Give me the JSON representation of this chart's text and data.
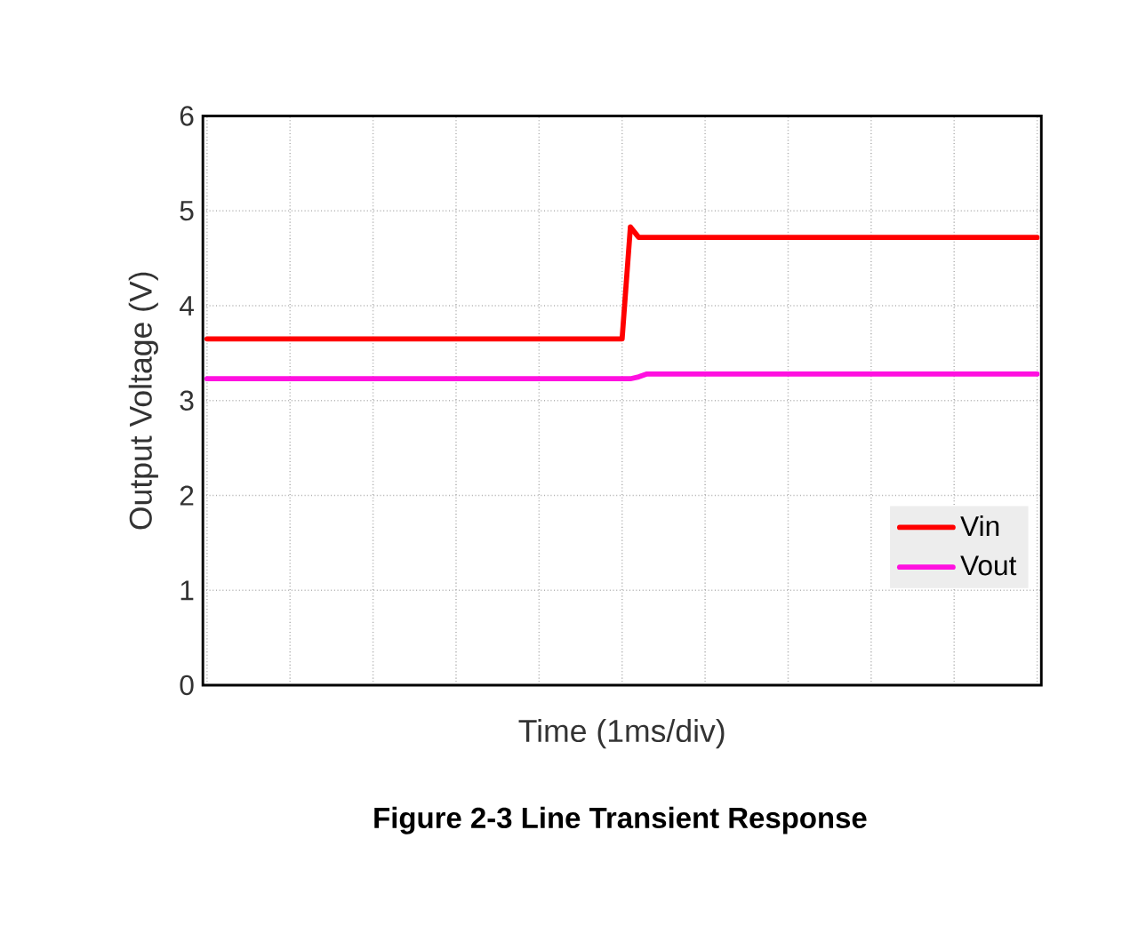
{
  "chart_data": {
    "type": "line",
    "title": "Figure 2-3 Line Transient Response",
    "xlabel": "Time (1ms/div)",
    "ylabel": "Output Voltage (V)",
    "categories": [
      null,
      null,
      null,
      null,
      null,
      null,
      null,
      null,
      null,
      null,
      null,
      null,
      null,
      null,
      null,
      null,
      null,
      null,
      null,
      null,
      null,
      null,
      null,
      null,
      null,
      null,
      null,
      null,
      null,
      null,
      null,
      null,
      null,
      null,
      null,
      null,
      null,
      null,
      null,
      null,
      null,
      null,
      null,
      null,
      null,
      null,
      null,
      null,
      null,
      null,
      null,
      null,
      null,
      null,
      null,
      null,
      null,
      null,
      null,
      null,
      null,
      null,
      null,
      null,
      null,
      null,
      null,
      null,
      null,
      null,
      null,
      null,
      null,
      null,
      null,
      null,
      null,
      null,
      null,
      null,
      null,
      null,
      null,
      null,
      null,
      null,
      null,
      null,
      null,
      null,
      null,
      null,
      null,
      null,
      null,
      null,
      null,
      null,
      null,
      null,
      null
    ],
    "series": [
      {
        "name": "Vin",
        "color": "#ff0000",
        "values": [
          3.65,
          3.65,
          3.65,
          3.65,
          3.65,
          3.65,
          3.65,
          3.65,
          3.65,
          3.65,
          3.65,
          3.65,
          3.65,
          3.65,
          3.65,
          3.65,
          3.65,
          3.65,
          3.65,
          3.65,
          3.65,
          3.65,
          3.65,
          3.65,
          3.65,
          3.65,
          3.65,
          3.65,
          3.65,
          3.65,
          3.65,
          3.65,
          3.65,
          3.65,
          3.65,
          3.65,
          3.65,
          3.65,
          3.65,
          3.65,
          3.65,
          3.65,
          3.65,
          3.65,
          3.65,
          3.65,
          3.65,
          3.65,
          3.65,
          3.65,
          3.65,
          4.83,
          4.72,
          4.72,
          4.72,
          4.72,
          4.72,
          4.72,
          4.72,
          4.72,
          4.72,
          4.72,
          4.72,
          4.72,
          4.72,
          4.72,
          4.72,
          4.72,
          4.72,
          4.72,
          4.72,
          4.72,
          4.72,
          4.72,
          4.72,
          4.72,
          4.72,
          4.72,
          4.72,
          4.72,
          4.72,
          4.72,
          4.72,
          4.72,
          4.72,
          4.72,
          4.72,
          4.72,
          4.72,
          4.72,
          4.72,
          4.72,
          4.72,
          4.72,
          4.72,
          4.72,
          4.72,
          4.72,
          4.72,
          4.72,
          4.72
        ]
      },
      {
        "name": "Vout",
        "color": "#ff10e0",
        "values": [
          3.23,
          3.23,
          3.23,
          3.23,
          3.23,
          3.23,
          3.23,
          3.23,
          3.23,
          3.23,
          3.23,
          3.23,
          3.23,
          3.23,
          3.23,
          3.23,
          3.23,
          3.23,
          3.23,
          3.23,
          3.23,
          3.23,
          3.23,
          3.23,
          3.23,
          3.23,
          3.23,
          3.23,
          3.23,
          3.23,
          3.23,
          3.23,
          3.23,
          3.23,
          3.23,
          3.23,
          3.23,
          3.23,
          3.23,
          3.23,
          3.23,
          3.23,
          3.23,
          3.23,
          3.23,
          3.23,
          3.23,
          3.23,
          3.23,
          3.23,
          3.23,
          3.23,
          3.25,
          3.28,
          3.28,
          3.28,
          3.28,
          3.28,
          3.28,
          3.28,
          3.28,
          3.28,
          3.28,
          3.28,
          3.28,
          3.28,
          3.28,
          3.28,
          3.28,
          3.28,
          3.28,
          3.28,
          3.28,
          3.28,
          3.28,
          3.28,
          3.28,
          3.28,
          3.28,
          3.28,
          3.28,
          3.28,
          3.28,
          3.28,
          3.28,
          3.28,
          3.28,
          3.28,
          3.28,
          3.28,
          3.28,
          3.28,
          3.28,
          3.28,
          3.28,
          3.28,
          3.28,
          3.28,
          3.28,
          3.28,
          3.28
        ]
      }
    ],
    "ylim": [
      0,
      6
    ],
    "yticks": [
      0,
      1,
      2,
      3,
      4,
      5,
      6
    ],
    "grid": true,
    "legend": "bottom right",
    "marker": "none",
    "line_style": "solid"
  }
}
